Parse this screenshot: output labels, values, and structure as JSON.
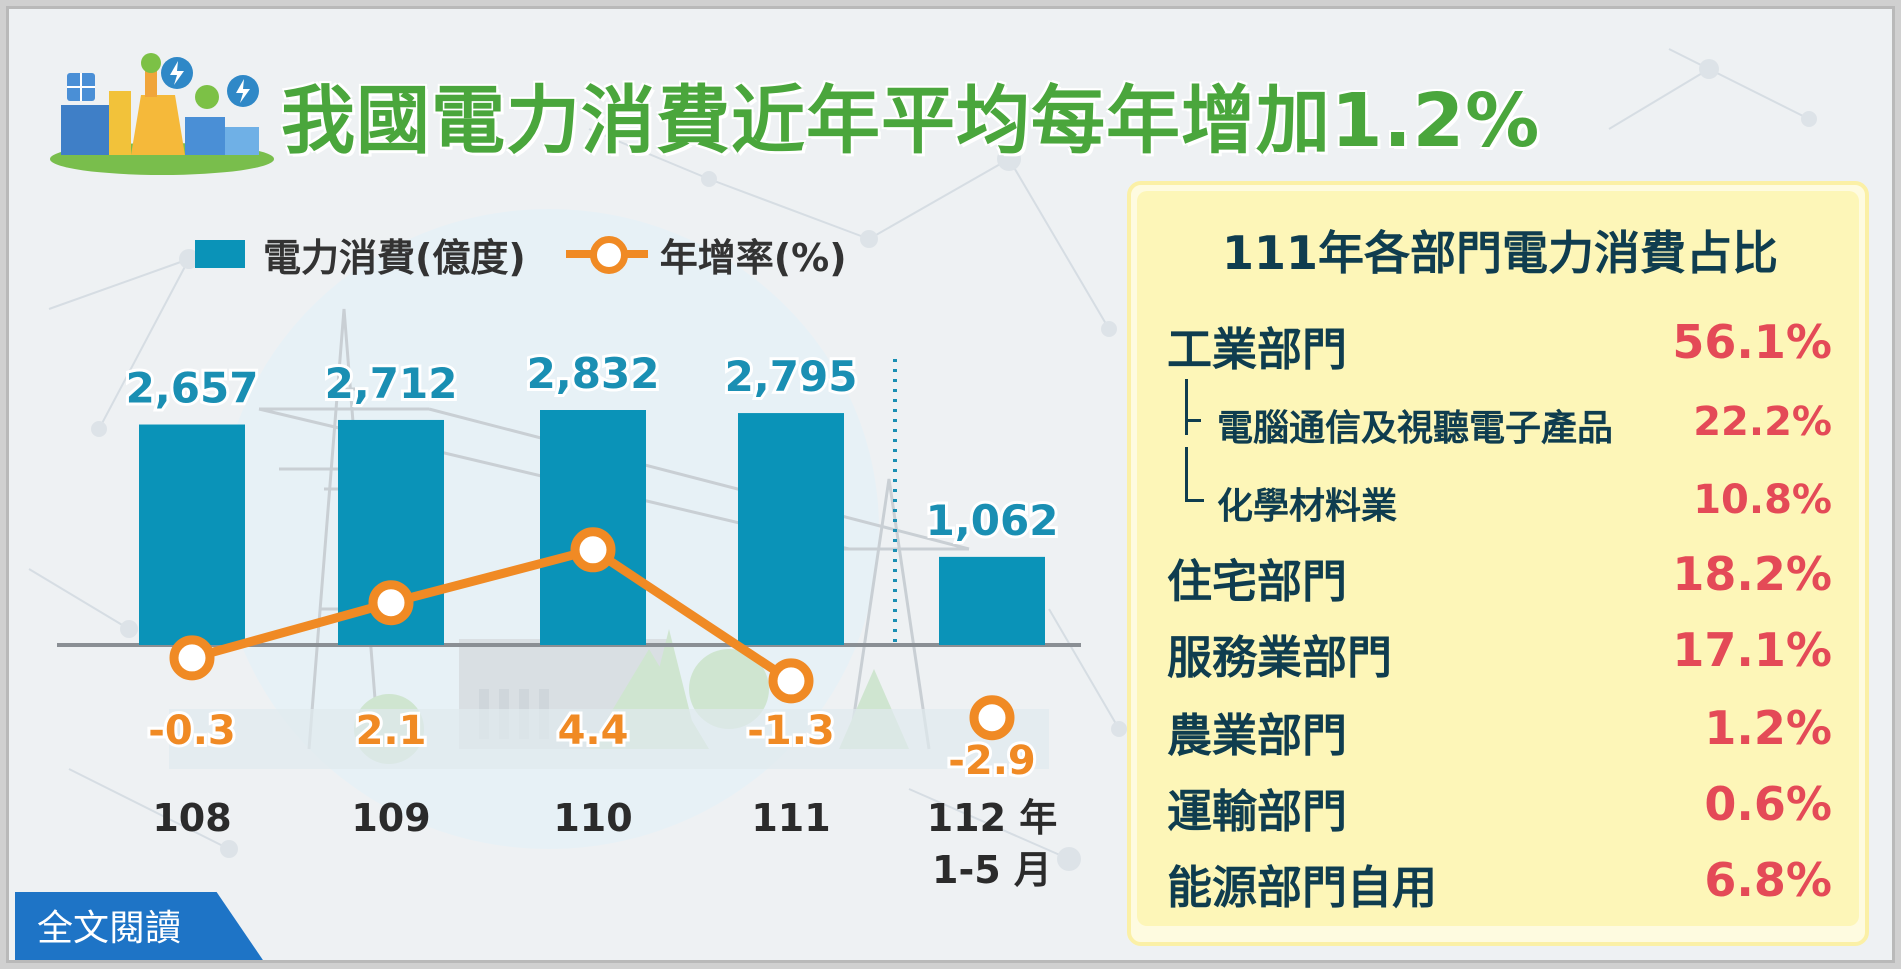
{
  "title": "我國電力消費近年平均每年增加1.2%",
  "legend": {
    "bar_label": "電力消費(億度)",
    "line_label": "年增率(%)"
  },
  "colors": {
    "bar": "#0a93b8",
    "line": "#f08a24",
    "title": "#4aa63c",
    "panel_text": "#0f3d4f",
    "panel_value": "#e44a57",
    "button": "#1e74c6"
  },
  "chart_data": {
    "type": "bar",
    "categories": [
      "108",
      "109",
      "110",
      "111",
      "112 年\n1-5 月"
    ],
    "category_lines": [
      [
        "108"
      ],
      [
        "109"
      ],
      [
        "110"
      ],
      [
        "111"
      ],
      [
        "112 年",
        "1-5 月"
      ]
    ],
    "series": [
      {
        "name": "電力消費(億度)",
        "type": "bar",
        "values": [
          2657,
          2712,
          2832,
          2795,
          1062
        ],
        "labels": [
          "2,657",
          "2,712",
          "2,832",
          "2,795",
          "1,062"
        ]
      },
      {
        "name": "年增率(%)",
        "type": "line",
        "values": [
          -0.3,
          2.1,
          4.4,
          -1.3,
          -2.9
        ],
        "labels": [
          "-0.3",
          "2.1",
          "4.4",
          "-1.3",
          "-2.9"
        ],
        "connected_points": 4
      }
    ],
    "legend_position": "top-left",
    "grid": false
  },
  "panel": {
    "title": "111年各部門電力消費占比",
    "sectors": [
      {
        "label": "工業部門",
        "value": "56.1%"
      },
      {
        "label": "電腦通信及視聽電子產品",
        "value": "22.2%",
        "sub": true
      },
      {
        "label": "化學材料業",
        "value": "10.8%",
        "sub": true
      },
      {
        "label": "住宅部門",
        "value": "18.2%"
      },
      {
        "label": "服務業部門",
        "value": "17.1%"
      },
      {
        "label": "農業部門",
        "value": "1.2%"
      },
      {
        "label": "運輸部門",
        "value": "0.6%"
      },
      {
        "label": "能源部門自用",
        "value": "6.8%"
      }
    ]
  },
  "read_button": "全文閱讀"
}
